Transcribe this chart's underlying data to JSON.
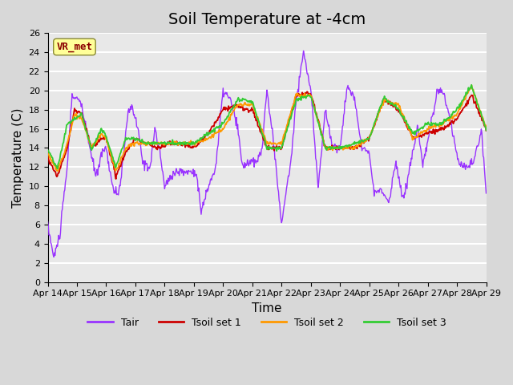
{
  "title": "Soil Temperature at -4cm",
  "xlabel": "Time",
  "ylabel": "Temperature (C)",
  "ylim": [
    0,
    26
  ],
  "xlim": [
    0,
    360
  ],
  "x_tick_labels": [
    "Apr 14",
    "Apr 15",
    "Apr 16",
    "Apr 17",
    "Apr 18",
    "Apr 19",
    "Apr 20",
    "Apr 21",
    "Apr 22",
    "Apr 23",
    "Apr 24",
    "Apr 25",
    "Apr 26",
    "Apr 27",
    "Apr 28",
    "Apr 29"
  ],
  "x_tick_positions": [
    0,
    24,
    48,
    72,
    96,
    120,
    144,
    168,
    192,
    216,
    240,
    264,
    288,
    312,
    336,
    360
  ],
  "annotation_text": "VR_met",
  "annotation_color": "#8B0000",
  "annotation_bg": "#FFFF99",
  "line_colors": {
    "Tair": "#9933FF",
    "Tsoil1": "#CC0000",
    "Tsoil2": "#FF9900",
    "Tsoil3": "#33CC33"
  },
  "legend_labels": [
    "Tair",
    "Tsoil set 1",
    "Tsoil set 2",
    "Tsoil set 3"
  ],
  "title_fontsize": 14,
  "axis_fontsize": 11,
  "tair_h": [
    0,
    5,
    10,
    16,
    20,
    26,
    32,
    36,
    40,
    44,
    48,
    54,
    58,
    62,
    66,
    70,
    74,
    78,
    84,
    88,
    92,
    96,
    104,
    110,
    118,
    122,
    126,
    132,
    138,
    144,
    150,
    156,
    160,
    164,
    168,
    172,
    176,
    180,
    186,
    192,
    196,
    200,
    204,
    210,
    216,
    222,
    228,
    234,
    240,
    246,
    252,
    258,
    264,
    268,
    274,
    280,
    286,
    292,
    298,
    304,
    308,
    314,
    320,
    326,
    332,
    338,
    344,
    350,
    356,
    360
  ],
  "tair_v": [
    6,
    2.5,
    5,
    12,
    19.5,
    19,
    16,
    13,
    11,
    13.5,
    14,
    9.5,
    9.2,
    12.5,
    18,
    18,
    16,
    12.5,
    12,
    16,
    13.5,
    10,
    11.5,
    11.5,
    11.5,
    11.5,
    7.3,
    10,
    12,
    20,
    19,
    16,
    12,
    12.5,
    12.5,
    12.5,
    14,
    20,
    14,
    6.0,
    9.6,
    13,
    19,
    24,
    20,
    10,
    18,
    14,
    14,
    20.5,
    19,
    14,
    13.8,
    9.3,
    9.5,
    8.4,
    12.5,
    8.4,
    12.5,
    16,
    12,
    16,
    20,
    19.5,
    16,
    12.3,
    12,
    12.5,
    16,
    9.6
  ],
  "tsoil1_h": [
    0,
    8,
    16,
    22,
    28,
    36,
    44,
    48,
    56,
    64,
    72,
    80,
    90,
    100,
    110,
    120,
    132,
    144,
    156,
    162,
    168,
    180,
    192,
    204,
    216,
    228,
    240,
    252,
    264,
    276,
    288,
    300,
    312,
    324,
    336,
    348,
    360
  ],
  "tsoil1_v": [
    13,
    11,
    14,
    18,
    17.5,
    14,
    15,
    15,
    11,
    13.5,
    15,
    14.5,
    14,
    14.5,
    14.5,
    14,
    15.5,
    18,
    18.5,
    18,
    18,
    14,
    14,
    19.5,
    19.8,
    14,
    14,
    14,
    15,
    19,
    18,
    15,
    15.5,
    16,
    17,
    19.5,
    16
  ],
  "tsoil2_h": [
    0,
    8,
    16,
    22,
    28,
    36,
    44,
    48,
    56,
    64,
    72,
    80,
    90,
    100,
    110,
    120,
    132,
    144,
    156,
    162,
    168,
    180,
    192,
    204,
    216,
    228,
    240,
    252,
    264,
    276,
    288,
    300,
    312,
    324,
    336,
    348,
    360
  ],
  "tsoil2_v": [
    13.5,
    11.5,
    14.5,
    17.5,
    17,
    14,
    15.5,
    15,
    11.5,
    14,
    14.5,
    14.5,
    14.5,
    14.5,
    14.5,
    14.5,
    15,
    16,
    18.5,
    18.5,
    18.5,
    14.5,
    14.5,
    19.5,
    19.5,
    14,
    14,
    14,
    15,
    19,
    18.5,
    15,
    16,
    16.5,
    17.5,
    20.5,
    16
  ],
  "tsoil3_h": [
    0,
    8,
    16,
    22,
    28,
    36,
    44,
    48,
    56,
    64,
    72,
    80,
    90,
    100,
    110,
    120,
    132,
    144,
    156,
    162,
    168,
    180,
    192,
    204,
    216,
    228,
    240,
    252,
    264,
    276,
    288,
    300,
    312,
    324,
    336,
    348,
    360
  ],
  "tsoil3_v": [
    13.8,
    11.8,
    16.5,
    17,
    17.5,
    13.8,
    16,
    15.2,
    12,
    15,
    15,
    14.5,
    14.5,
    14.5,
    14.5,
    14.5,
    15.5,
    16.5,
    19,
    19,
    18.8,
    14,
    14,
    19,
    19.5,
    14,
    14,
    14.5,
    15,
    19.3,
    18,
    15.5,
    16.5,
    16.5,
    18,
    20.5,
    16
  ]
}
